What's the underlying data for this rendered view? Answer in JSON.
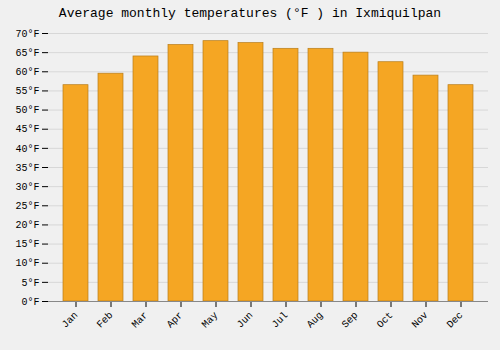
{
  "chart_data": {
    "type": "bar",
    "title": "Average monthly temperatures (°F ) in Ixmiquilpan",
    "categories": [
      "Jan",
      "Feb",
      "Mar",
      "Apr",
      "May",
      "Jun",
      "Jul",
      "Aug",
      "Sep",
      "Oct",
      "Nov",
      "Dec"
    ],
    "values": [
      56.5,
      59.5,
      64.0,
      67.0,
      68.0,
      67.5,
      66.0,
      66.0,
      65.0,
      62.5,
      59.0,
      56.5
    ],
    "color": "#F5A623",
    "ylim": [
      0,
      70
    ],
    "yticks": [
      {
        "value": 0,
        "label": "0°F"
      },
      {
        "value": 5,
        "label": "5°F"
      },
      {
        "value": 10,
        "label": "10°F"
      },
      {
        "value": 15,
        "label": "15°F"
      },
      {
        "value": 20,
        "label": "20°F"
      },
      {
        "value": 25,
        "label": "25°F"
      },
      {
        "value": 30,
        "label": "30°F"
      },
      {
        "value": 35,
        "label": "35°F"
      },
      {
        "value": 40,
        "label": "40°F"
      },
      {
        "value": 45,
        "label": "45°F"
      },
      {
        "value": 50,
        "label": "50°F"
      },
      {
        "value": 55,
        "label": "55°F"
      },
      {
        "value": 60,
        "label": "60°F"
      },
      {
        "value": 65,
        "label": "65°F"
      },
      {
        "value": 70,
        "label": "70°F"
      }
    ],
    "grid": true
  }
}
